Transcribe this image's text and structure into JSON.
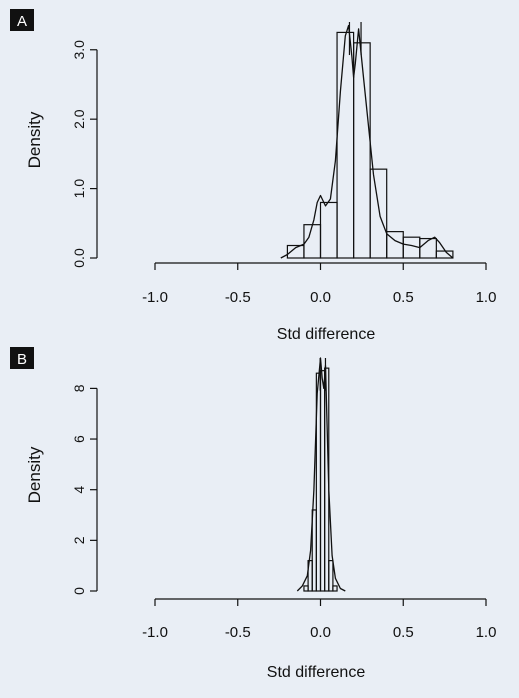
{
  "chart_data": [
    {
      "panel_label": "A",
      "type": "bar",
      "subtype": "histogram-with-density-curve",
      "xlabel": "Std difference",
      "ylabel": "Density",
      "xlim": [
        -1.0,
        1.0
      ],
      "ylim": [
        0,
        3.4
      ],
      "x_ticks": [
        -1.0,
        -0.5,
        0.0,
        0.5,
        1.0
      ],
      "x_tick_labels": [
        "-1.0",
        "-0.5",
        "0.0",
        "0.5",
        "1.0"
      ],
      "y_ticks": [
        0,
        1,
        2,
        3
      ],
      "y_tick_labels": [
        "0.0",
        "1.0",
        "2.0",
        "3.0"
      ],
      "grid": false,
      "bins": [
        {
          "x0": -0.2,
          "x1": -0.1,
          "density": 0.18
        },
        {
          "x0": -0.1,
          "x1": 0.0,
          "density": 0.48
        },
        {
          "x0": 0.0,
          "x1": 0.1,
          "density": 0.8
        },
        {
          "x0": 0.1,
          "x1": 0.2,
          "density": 3.25
        },
        {
          "x0": 0.2,
          "x1": 0.3,
          "density": 3.1
        },
        {
          "x0": 0.3,
          "x1": 0.4,
          "density": 1.28
        },
        {
          "x0": 0.4,
          "x1": 0.5,
          "density": 0.38
        },
        {
          "x0": 0.5,
          "x1": 0.6,
          "density": 0.3
        },
        {
          "x0": 0.6,
          "x1": 0.7,
          "density": 0.28
        },
        {
          "x0": 0.7,
          "x1": 0.8,
          "density": 0.1
        }
      ],
      "density_curve": {
        "x": [
          -0.24,
          -0.2,
          -0.15,
          -0.1,
          -0.07,
          -0.04,
          -0.02,
          0.0,
          0.03,
          0.06,
          0.09,
          0.12,
          0.15,
          0.17,
          0.19,
          0.2,
          0.21,
          0.23,
          0.26,
          0.29,
          0.32,
          0.36,
          0.4,
          0.45,
          0.5,
          0.55,
          0.6,
          0.65,
          0.69,
          0.72,
          0.76,
          0.8
        ],
        "y": [
          0.0,
          0.05,
          0.15,
          0.2,
          0.3,
          0.55,
          0.8,
          0.9,
          0.75,
          0.85,
          1.4,
          2.4,
          3.2,
          3.35,
          2.9,
          2.6,
          2.8,
          3.3,
          2.6,
          1.9,
          1.2,
          0.6,
          0.35,
          0.25,
          0.2,
          0.18,
          0.15,
          0.25,
          0.3,
          0.22,
          0.08,
          0.0
        ]
      },
      "peak_markers_x": [
        0.175,
        0.245
      ]
    },
    {
      "panel_label": "B",
      "type": "bar",
      "subtype": "histogram-with-density-curve",
      "xlabel": "Std difference",
      "ylabel": "Density",
      "xlim": [
        -1.0,
        1.0
      ],
      "ylim": [
        0,
        9.2
      ],
      "x_ticks": [
        -1.0,
        -0.5,
        0.0,
        0.5,
        1.0
      ],
      "x_tick_labels": [
        "-1.0",
        "-0.5",
        "0.0",
        "0.5",
        "1.0"
      ],
      "y_ticks": [
        0,
        2,
        4,
        6,
        8
      ],
      "y_tick_labels": [
        "0",
        "2",
        "4",
        "6",
        "8"
      ],
      "grid": false,
      "bins": [
        {
          "x0": -0.1,
          "x1": -0.075,
          "density": 0.2
        },
        {
          "x0": -0.075,
          "x1": -0.05,
          "density": 1.2
        },
        {
          "x0": -0.05,
          "x1": -0.025,
          "density": 3.2
        },
        {
          "x0": -0.025,
          "x1": 0.0,
          "density": 8.6
        },
        {
          "x0": 0.0,
          "x1": 0.025,
          "density": 8.7
        },
        {
          "x0": 0.025,
          "x1": 0.05,
          "density": 8.8
        },
        {
          "x0": 0.05,
          "x1": 0.075,
          "density": 1.2
        },
        {
          "x0": 0.075,
          "x1": 0.1,
          "density": 0.2
        }
      ],
      "density_curve": {
        "x": [
          -0.14,
          -0.11,
          -0.08,
          -0.06,
          -0.04,
          -0.02,
          0.0,
          0.01,
          0.02,
          0.03,
          0.05,
          0.07,
          0.09,
          0.12,
          0.15
        ],
        "y": [
          0.0,
          0.2,
          0.6,
          1.6,
          4.0,
          7.8,
          9.2,
          8.4,
          8.0,
          8.9,
          4.0,
          1.4,
          0.5,
          0.1,
          0.0
        ]
      },
      "peak_markers_x": [
        -0.002,
        0.03
      ]
    }
  ]
}
